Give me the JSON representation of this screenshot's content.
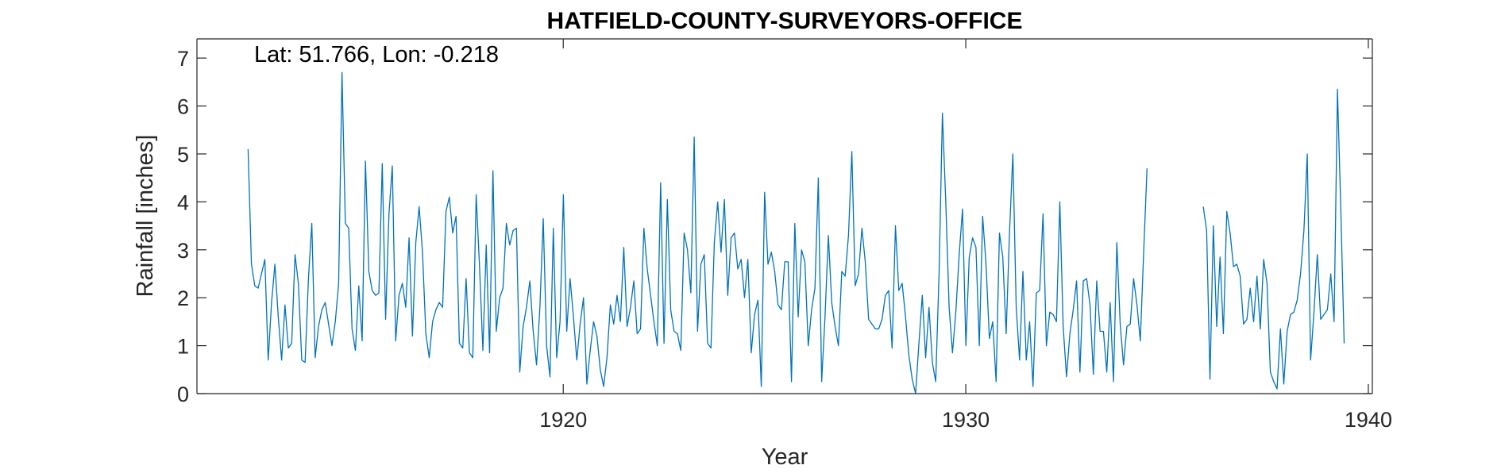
{
  "chart_data": {
    "type": "line",
    "title": "HATFIELD-COUNTY-SURVEYORS-OFFICE",
    "xlabel": "Year",
    "ylabel": "Rainfall [inches]",
    "annotation": "Lat: 51.766, Lon: -0.218",
    "xlim": [
      1910.9,
      1940.1
    ],
    "ylim": [
      0,
      7.4
    ],
    "x_ticks": [
      1920,
      1930,
      1940
    ],
    "y_ticks": [
      0,
      1,
      2,
      3,
      4,
      5,
      6,
      7
    ],
    "grid": false,
    "legend": "none",
    "line_color": "#0072BD",
    "series": [
      {
        "start_year": 1912.17,
        "step_years": 0.08333,
        "values": [
          5.1,
          2.7,
          2.25,
          2.2,
          2.5,
          2.8,
          0.7,
          1.9,
          2.7,
          1.6,
          0.7,
          1.85,
          0.95,
          1.05,
          2.9,
          2.3,
          0.7,
          0.65,
          2.4,
          3.55,
          0.75,
          1.4,
          1.75,
          1.9,
          1.45,
          1.0,
          1.5,
          2.3,
          6.7,
          3.55,
          3.45,
          1.35,
          0.9,
          2.25,
          1.1,
          4.85,
          2.55,
          2.15,
          2.05,
          2.1,
          4.8,
          1.55,
          3.75,
          4.75,
          1.1,
          2.05,
          2.3,
          1.8,
          3.25,
          1.2,
          3.15,
          3.9,
          2.95,
          1.25,
          0.75,
          1.5,
          1.75,
          1.9,
          1.8,
          3.8,
          4.1,
          3.35,
          3.7,
          1.05,
          0.95,
          2.4,
          0.85,
          0.75,
          4.15,
          2.65,
          0.9,
          3.1,
          0.85,
          4.65,
          1.3,
          2.0,
          2.2,
          3.55,
          3.1,
          3.4,
          3.45,
          0.45,
          1.4,
          1.8,
          2.35,
          1.3,
          0.6,
          1.8,
          3.65,
          1.0,
          0.35,
          3.45,
          0.75,
          1.5,
          4.15,
          1.3,
          2.4,
          1.6,
          0.7,
          1.45,
          2.0,
          0.2,
          0.9,
          1.5,
          1.2,
          0.5,
          0.15,
          0.75,
          1.85,
          1.45,
          2.05,
          1.5,
          3.05,
          1.4,
          1.8,
          2.35,
          1.25,
          1.35,
          3.45,
          2.6,
          2.05,
          1.5,
          1.0,
          4.4,
          1.05,
          4.05,
          1.75,
          1.3,
          1.25,
          0.9,
          3.35,
          3.0,
          2.1,
          5.35,
          1.3,
          2.7,
          2.9,
          1.05,
          0.95,
          3.15,
          4.0,
          2.95,
          4.05,
          2.05,
          3.25,
          3.35,
          2.6,
          2.8,
          2.0,
          2.8,
          0.85,
          1.65,
          1.95,
          0.15,
          4.2,
          2.7,
          2.95,
          2.55,
          1.85,
          1.75,
          2.75,
          2.75,
          0.25,
          3.55,
          1.6,
          3.0,
          2.75,
          1.0,
          1.75,
          2.2,
          4.5,
          0.25,
          1.6,
          3.3,
          1.9,
          1.4,
          1.0,
          2.55,
          2.45,
          3.3,
          5.05,
          2.25,
          2.5,
          3.45,
          2.75,
          1.55,
          1.45,
          1.35,
          1.35,
          1.55,
          2.05,
          2.15,
          0.95,
          3.5,
          2.15,
          2.3,
          1.6,
          0.8,
          0.3,
          0.0,
          1.05,
          2.05,
          0.75,
          1.8,
          0.65,
          0.25,
          2.5,
          5.85,
          4.0,
          1.8,
          0.85,
          1.7,
          2.9,
          3.85,
          1.0,
          2.85,
          3.25,
          3.05,
          1.0,
          3.7,
          2.7,
          1.15,
          1.5,
          0.25,
          3.35,
          2.85,
          1.25,
          3.35,
          5.0,
          1.8,
          0.7,
          2.55,
          0.7,
          1.5,
          0.15,
          2.1,
          2.15,
          3.75,
          1.0,
          1.7,
          1.65,
          1.5,
          4.0,
          1.4,
          0.35,
          1.25,
          1.75,
          2.35,
          0.45,
          2.35,
          2.4,
          1.85,
          0.4,
          2.35,
          1.3,
          1.3,
          0.45,
          1.9,
          0.25,
          3.15,
          1.45,
          0.6,
          1.4,
          1.45,
          2.4,
          1.85,
          1.1,
          2.95,
          4.7
        ]
      },
      {
        "start_year": 1935.9,
        "step_years": 0.08333,
        "values": [
          3.9,
          3.4,
          0.3,
          3.5,
          1.4,
          2.85,
          1.25,
          3.8,
          3.35,
          2.65,
          2.7,
          2.45,
          1.45,
          1.55,
          2.2,
          1.5,
          2.45,
          1.35,
          2.8,
          2.3,
          0.45,
          0.25,
          0.1,
          1.35,
          0.2,
          1.3,
          1.65,
          1.7,
          1.95,
          2.5,
          3.4,
          5.0,
          0.7,
          1.7,
          2.9,
          1.55,
          1.65,
          1.75,
          2.5,
          1.5,
          6.35,
          3.85,
          1.05
        ]
      }
    ]
  }
}
